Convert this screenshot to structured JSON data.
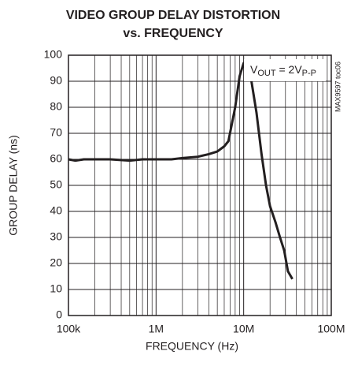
{
  "chart_data": {
    "type": "line",
    "title": [
      "VIDEO GROUP DELAY DISTORTION",
      "vs. FREQUENCY"
    ],
    "xlabel": "FREQUENCY (Hz)",
    "ylabel": "GROUP DELAY (ns)",
    "annotation": [
      "V",
      "OUT",
      " = 2V",
      "P-P"
    ],
    "side_note": "MAX9597 toc06",
    "xscale": "log",
    "xlim": [
      100000,
      100000000
    ],
    "xticks": [
      {
        "value": 100000,
        "label": "100k"
      },
      {
        "value": 1000000,
        "label": "1M"
      },
      {
        "value": 10000000,
        "label": "10M"
      },
      {
        "value": 100000000,
        "label": "100M"
      }
    ],
    "xminorticks": [
      200000,
      300000,
      400000,
      500000,
      600000,
      700000,
      800000,
      900000,
      2000000,
      3000000,
      4000000,
      5000000,
      6000000,
      7000000,
      8000000,
      9000000,
      20000000,
      30000000,
      40000000,
      50000000,
      60000000,
      70000000,
      80000000,
      90000000
    ],
    "ylim": [
      0,
      100
    ],
    "yticks": [
      0,
      10,
      20,
      30,
      40,
      50,
      60,
      70,
      80,
      90,
      100
    ],
    "grid": true,
    "color": "#231f20",
    "x": [
      100000,
      120000,
      150000,
      200000,
      300000,
      500000,
      700000,
      1000000,
      1500000,
      2000000,
      3000000,
      4000000,
      5000000,
      6000000,
      6700000,
      8000000,
      9000000,
      10000000,
      11000000,
      12000000,
      14000000,
      16000000,
      18000000,
      20000000,
      23000000,
      26000000,
      29000000,
      32000000,
      36000000
    ],
    "values": [
      60,
      59.5,
      60,
      60,
      60,
      59.5,
      60,
      60,
      60,
      60.5,
      61,
      62,
      63,
      65,
      67,
      80,
      92,
      97,
      96,
      92,
      78,
      62,
      50,
      42,
      36,
      30,
      25,
      17,
      14
    ]
  }
}
